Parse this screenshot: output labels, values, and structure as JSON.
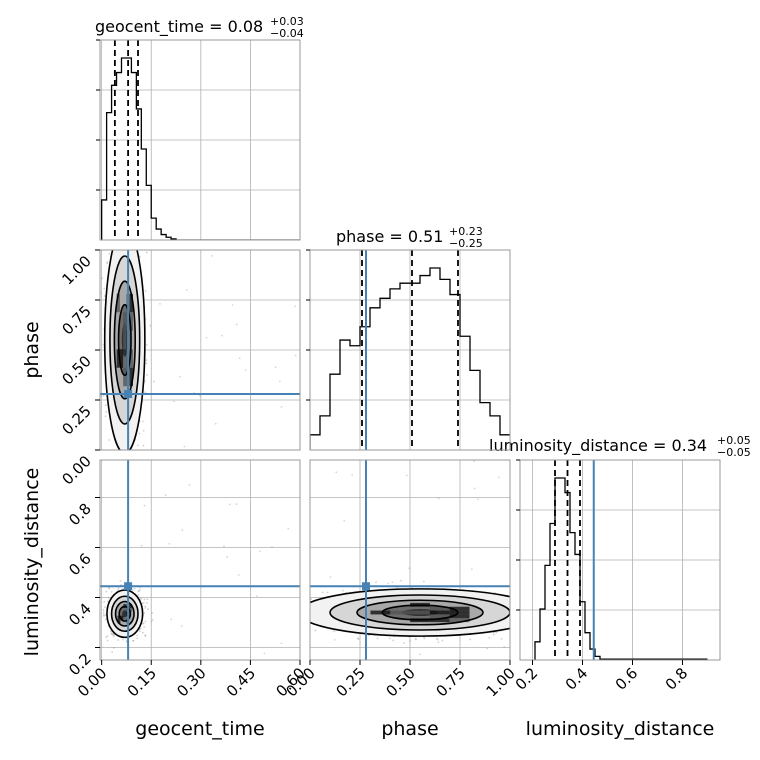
{
  "chart_data": {
    "type": "corner",
    "parameters": [
      "geocent_time",
      "phase",
      "luminosity_distance"
    ],
    "ranges": {
      "geocent_time": [
        -0.005,
        0.6
      ],
      "phase": [
        0.0,
        1.0
      ],
      "luminosity_distance": [
        0.15,
        0.95
      ]
    },
    "ticks": {
      "geocent_time": [
        "0.00",
        "0.15",
        "0.30",
        "0.45",
        "0.60"
      ],
      "phase": [
        "0.00",
        "0.25",
        "0.50",
        "0.75",
        "1.00"
      ],
      "luminosity_distance": [
        "0.2",
        "0.4",
        "0.6",
        "0.8"
      ]
    },
    "tick_values": {
      "geocent_time": [
        0.0,
        0.15,
        0.3,
        0.45,
        0.6
      ],
      "phase": [
        0.0,
        0.25,
        0.5,
        0.75,
        1.0
      ],
      "luminosity_distance": [
        0.2,
        0.4,
        0.6,
        0.8
      ]
    },
    "truths": {
      "geocent_time": 0.08,
      "phase": 0.28,
      "luminosity_distance": 0.445
    },
    "quantiles": {
      "geocent_time": [
        0.04,
        0.08,
        0.11
      ],
      "phase": [
        0.26,
        0.51,
        0.74
      ],
      "luminosity_distance": [
        0.29,
        0.34,
        0.39
      ]
    },
    "titles": {
      "geocent_time": {
        "name": "geocent_time",
        "value": "0.08",
        "plus": "+0.03",
        "minus": "−0.04"
      },
      "phase": {
        "name": "phase",
        "value": "0.51",
        "plus": "+0.23",
        "minus": "−0.25"
      },
      "luminosity_distance": {
        "name": "luminosity_distance",
        "value": "0.34",
        "plus": "+0.05",
        "minus": "−0.05"
      }
    },
    "histograms": {
      "geocent_time": {
        "edges": [
          0.0,
          0.015,
          0.03,
          0.045,
          0.06,
          0.075,
          0.09,
          0.105,
          0.12,
          0.135,
          0.15,
          0.165,
          0.18,
          0.195,
          0.21,
          0.225,
          0.6
        ],
        "counts": [
          0.22,
          0.7,
          0.85,
          0.92,
          1.0,
          1.0,
          0.92,
          0.72,
          0.5,
          0.3,
          0.12,
          0.06,
          0.03,
          0.015,
          0.006,
          0.0
        ]
      },
      "phase": {
        "edges": [
          0.0,
          0.05,
          0.1,
          0.15,
          0.2,
          0.25,
          0.3,
          0.35,
          0.4,
          0.45,
          0.5,
          0.55,
          0.6,
          0.65,
          0.7,
          0.75,
          0.8,
          0.85,
          0.9,
          0.95,
          1.0
        ],
        "counts": [
          0.08,
          0.18,
          0.4,
          0.58,
          0.55,
          0.65,
          0.75,
          0.8,
          0.85,
          0.88,
          0.88,
          0.92,
          0.96,
          0.9,
          0.82,
          0.6,
          0.42,
          0.25,
          0.18,
          0.08
        ]
      },
      "luminosity_distance": {
        "edges": [
          0.21,
          0.23,
          0.25,
          0.27,
          0.29,
          0.31,
          0.33,
          0.35,
          0.37,
          0.39,
          0.41,
          0.43,
          0.45,
          0.47,
          0.9
        ],
        "counts": [
          0.1,
          0.28,
          0.52,
          0.75,
          1.0,
          1.0,
          0.92,
          0.7,
          0.58,
          0.32,
          0.15,
          0.06,
          0.02,
          0.005
        ]
      }
    },
    "correlations": {
      "phase_vs_geocent_time": {
        "center": [
          0.07,
          0.55
        ],
        "width": [
          0.045,
          0.42
        ]
      },
      "luminosity_distance_vs_geocent_time": {
        "center": [
          0.07,
          0.335
        ],
        "width": [
          0.04,
          0.07
        ]
      },
      "luminosity_distance_vs_phase": {
        "center": [
          0.55,
          0.34
        ],
        "width": [
          0.45,
          0.07
        ]
      }
    },
    "colors": {
      "truth": "#4682b4",
      "contour": "#000000",
      "grid": "#b0b0b0",
      "scatter": "#9a9a9a"
    },
    "grid": true
  }
}
